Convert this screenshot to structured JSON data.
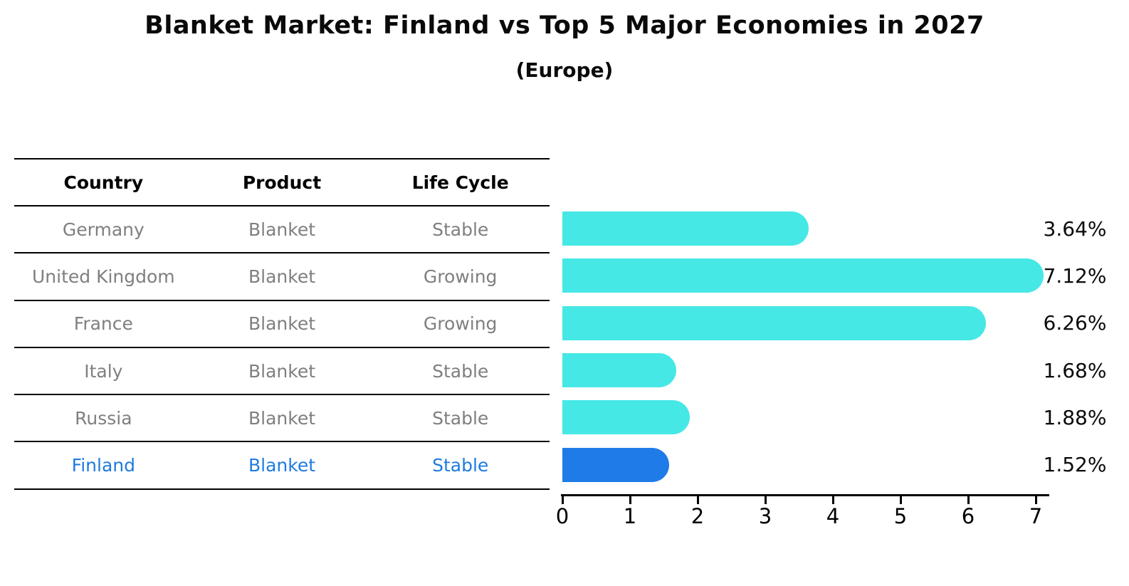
{
  "title": "Blanket Market: Finland vs Top 5 Major Economies in 2027",
  "subtitle": "(Europe)",
  "table": {
    "columns": [
      "Country",
      "Product",
      "Life Cycle"
    ],
    "rows": [
      {
        "country": "Germany",
        "product": "Blanket",
        "life_cycle": "Stable",
        "highlight": false
      },
      {
        "country": "United Kingdom",
        "product": "Blanket",
        "life_cycle": "Growing",
        "highlight": false
      },
      {
        "country": "France",
        "product": "Blanket",
        "life_cycle": "Growing",
        "highlight": false
      },
      {
        "country": "Italy",
        "product": "Blanket",
        "life_cycle": "Stable",
        "highlight": false
      },
      {
        "country": "Russia",
        "product": "Blanket",
        "life_cycle": "Stable",
        "highlight": false
      },
      {
        "country": "Finland",
        "product": "Blanket",
        "life_cycle": "Stable",
        "highlight": true
      }
    ]
  },
  "chart_data": {
    "type": "bar",
    "orientation": "horizontal",
    "title": "Blanket Market: Finland vs Top 5 Major Economies in 2027",
    "subtitle": "(Europe)",
    "categories": [
      "Germany",
      "United Kingdom",
      "France",
      "Italy",
      "Russia",
      "Finland"
    ],
    "values": [
      3.64,
      7.12,
      6.26,
      1.68,
      1.88,
      1.52
    ],
    "value_labels": [
      "3.64%",
      "7.12%",
      "6.26%",
      "1.68%",
      "1.88%",
      "1.52%"
    ],
    "x_ticks": [
      0,
      1,
      2,
      3,
      4,
      5,
      6,
      7
    ],
    "xlim": [
      0,
      7.2
    ],
    "grid": false,
    "legend": "none",
    "bar_color": "#45e8e5",
    "highlight_color": "#1f7be8",
    "highlight_index": 5,
    "axis_color": "#000000"
  },
  "colors": {
    "row_text": "#7f7f7f",
    "highlight_text": "#1f7be0",
    "header_text": "#000000",
    "background": "#ffffff"
  }
}
